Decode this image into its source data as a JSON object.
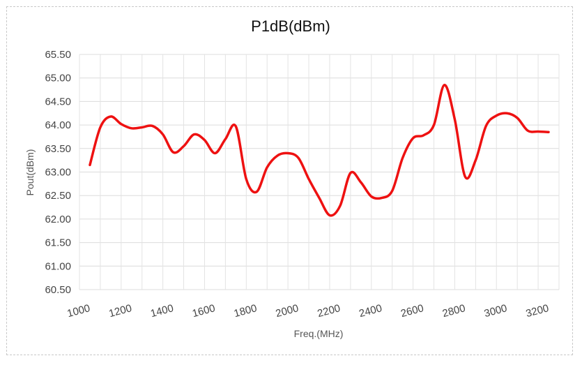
{
  "chart_data": {
    "type": "line",
    "title": "P1dB(dBm)",
    "xlabel": "Freq.(MHz)",
    "ylabel": "Pout(dBm)",
    "x_ticks": [
      "1000",
      "1200",
      "1400",
      "1600",
      "1800",
      "2000",
      "2200",
      "2400",
      "2600",
      "2800",
      "3000",
      "3200"
    ],
    "y_ticks": [
      "65.50",
      "65.00",
      "64.50",
      "64.00",
      "63.50",
      "63.00",
      "62.50",
      "62.00",
      "61.50",
      "61.00",
      "60.50"
    ],
    "xlim": [
      1000,
      3300
    ],
    "ylim": [
      60.5,
      65.5
    ],
    "grid": true,
    "line_color": "#ee1111",
    "series": [
      {
        "x": [
          1050,
          1100,
          1150,
          1200,
          1250,
          1300,
          1350,
          1400,
          1450,
          1500,
          1550,
          1600,
          1650,
          1700,
          1750,
          1800,
          1850,
          1900,
          1950,
          2000,
          2050,
          2100,
          2150,
          2200,
          2250,
          2300,
          2350,
          2400,
          2450,
          2500,
          2550,
          2600,
          2650,
          2700,
          2750,
          2800,
          2850,
          2900,
          2950,
          3000,
          3050,
          3100,
          3150,
          3200,
          3250
        ],
        "y": [
          63.15,
          63.95,
          64.18,
          64.02,
          63.93,
          63.95,
          63.98,
          63.8,
          63.42,
          63.55,
          63.8,
          63.68,
          63.4,
          63.7,
          63.97,
          62.85,
          62.58,
          63.1,
          63.35,
          63.4,
          63.3,
          62.85,
          62.45,
          62.08,
          62.28,
          62.98,
          62.78,
          62.48,
          62.45,
          62.6,
          63.3,
          63.72,
          63.78,
          64.0,
          64.85,
          64.12,
          62.9,
          63.25,
          63.98,
          64.2,
          64.25,
          64.15,
          63.88,
          63.86,
          63.85
        ]
      }
    ]
  }
}
